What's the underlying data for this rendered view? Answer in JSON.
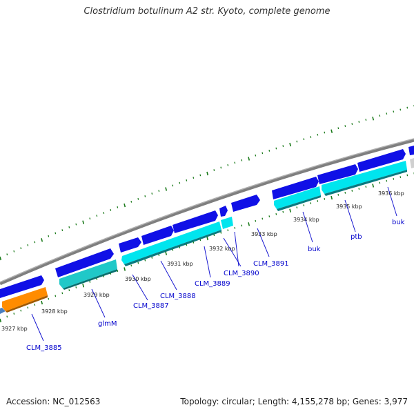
{
  "title": "Clostridium botulinum A2 str. Kyoto, complete genome",
  "footer": {
    "accession": "Accession: NC_012563",
    "summary": "Topology: circular; Length: 4,155,278 bp; Genes: 3,977"
  },
  "colors": {
    "forward_gene": "#1010e6",
    "reverse_cds": "#00e5ee",
    "reverse_other": "#20c8c8",
    "rrna": "#ff8c00",
    "backbone": "#808080",
    "tick": "#1a7a1a",
    "label": "#0000cc"
  },
  "scale_labels": [
    "3927 kbp",
    "3928 kbp",
    "3929 kbp",
    "3930 kbp",
    "3931 kbp",
    "3932 kbp",
    "3933 kbp",
    "3934 kbp",
    "3935 kbp",
    "3936 kbp"
  ],
  "gene_labels": [
    "CLM_3885",
    "glmM",
    "CLM_3887",
    "CLM_3888",
    "CLM_3889",
    "CLM_3890",
    "CLM_3891",
    "buk",
    "ptb",
    "buk"
  ]
}
